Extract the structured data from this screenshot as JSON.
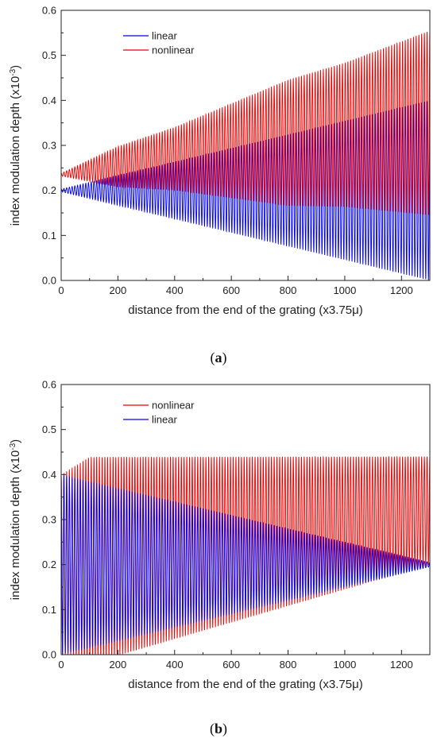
{
  "colors": {
    "linear": "#0000ee",
    "nonlinear": "#ee0000",
    "axis": "#222222"
  },
  "chart_data": [
    {
      "type": "line",
      "panel": "a",
      "caption": {
        "open": "(",
        "letter": "a",
        "close": ")"
      },
      "xlabel": "distance from the end of the grating (x3.75μ)",
      "ylabel_main": "index modulation depth (x10",
      "ylabel_sup": "-3",
      "ylabel_close": ")",
      "xlim": [
        0,
        1300
      ],
      "ylim": [
        0,
        0.6
      ],
      "xticks": [
        "0",
        "200",
        "400",
        "600",
        "800",
        "1000",
        "1200"
      ],
      "xtick_values": [
        0,
        200,
        400,
        600,
        800,
        1000,
        1200
      ],
      "yticks": [
        "0.0",
        "0.1",
        "0.2",
        "0.3",
        "0.4",
        "0.5",
        "0.6"
      ],
      "ytick_values": [
        0,
        0.1,
        0.2,
        0.3,
        0.4,
        0.5,
        0.6
      ],
      "legend_position": "top-left",
      "oscillation_cycles": 135,
      "series": [
        {
          "name": "linear",
          "color": "#0000ee",
          "center": {
            "x": [
              0,
              1300
            ],
            "y": [
              0.2,
              0.2
            ]
          },
          "amplitude": {
            "x": [
              0,
              1300
            ],
            "y": [
              0.003,
              0.2
            ]
          }
        },
        {
          "name": "nonlinear",
          "color": "#ee0000",
          "center": {
            "x": [
              0,
              1300
            ],
            "y": [
              0.235,
              0.35
            ]
          },
          "amplitude": {
            "x": [
              0,
              200,
              400,
              600,
              800,
              1000,
              1300
            ],
            "y": [
              0.003,
              0.045,
              0.07,
              0.105,
              0.14,
              0.16,
              0.205
            ]
          }
        }
      ],
      "legend_order": [
        "linear",
        "nonlinear"
      ]
    },
    {
      "type": "line",
      "panel": "b",
      "caption": {
        "open": "(",
        "letter": "b",
        "close": ")"
      },
      "xlabel": "distance from the end of the grating (x3.75μ)",
      "ylabel_main": "index modulation depth (x10",
      "ylabel_sup": "-3",
      "ylabel_close": ")",
      "xlim": [
        0,
        1300
      ],
      "ylim": [
        0,
        0.6
      ],
      "xticks": [
        "0",
        "200",
        "400",
        "600",
        "800",
        "1000",
        "1200"
      ],
      "xtick_values": [
        0,
        200,
        400,
        600,
        800,
        1000,
        1200
      ],
      "yticks": [
        "0.0",
        "0.1",
        "0.2",
        "0.3",
        "0.4",
        "0.5",
        "0.6"
      ],
      "ytick_values": [
        0,
        0.1,
        0.2,
        0.3,
        0.4,
        0.5,
        0.6
      ],
      "legend_position": "top-left",
      "oscillation_cycles": 135,
      "series": [
        {
          "name": "nonlinear",
          "color": "#ee0000",
          "center": {
            "x": [
              0,
              1300
            ],
            "y": [
              0.2,
              0.32
            ]
          },
          "amplitude": {
            "x": [
              0,
              100,
              1300
            ],
            "y": [
              0.2,
              0.23,
              0.12
            ]
          }
        },
        {
          "name": "linear",
          "color": "#0000ee",
          "center": {
            "x": [
              0,
              1300
            ],
            "y": [
              0.2,
              0.2
            ]
          },
          "amplitude": {
            "x": [
              0,
              1300
            ],
            "y": [
              0.2,
              0.005
            ]
          }
        }
      ],
      "legend_order": [
        "nonlinear",
        "linear"
      ]
    }
  ]
}
